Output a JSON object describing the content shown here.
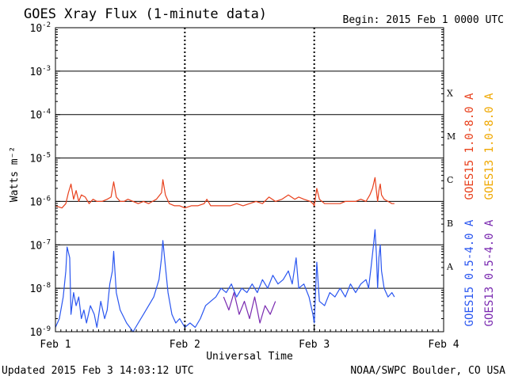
{
  "title": "GOES Xray Flux (1-minute data)",
  "begin_label": "Begin:  2015 Feb 1 0000 UTC",
  "updated_label": "Updated 2015 Feb  3 14:03:12 UTC",
  "credit": "NOAA/SWPC Boulder, CO USA",
  "colors": {
    "goes15_long": "#e8401c",
    "goes13_long": "#f0a800",
    "goes15_short": "#2a56f0",
    "goes13_short": "#7a2ab0"
  },
  "chart_data": {
    "type": "line",
    "title": "GOES Xray Flux (1-minute data)",
    "xlabel": "Universal Time",
    "ylabel": "Watts m⁻²",
    "y_scale": "log",
    "ylim": [
      1e-09,
      0.01
    ],
    "xlim": [
      0,
      3
    ],
    "x_unit": "days since 2015 Feb 1 0000 UTC",
    "x_ticks": [
      {
        "value": 0,
        "label": "Feb 1"
      },
      {
        "value": 1,
        "label": "Feb 2"
      },
      {
        "value": 2,
        "label": "Feb 3"
      },
      {
        "value": 3,
        "label": "Feb 4"
      }
    ],
    "y_ticks": [
      {
        "exp": -9,
        "label": "10",
        "sup": "-9"
      },
      {
        "exp": -8,
        "label": "10",
        "sup": "-8"
      },
      {
        "exp": -7,
        "label": "10",
        "sup": "-7"
      },
      {
        "exp": -6,
        "label": "10",
        "sup": "-6"
      },
      {
        "exp": -5,
        "label": "10",
        "sup": "-5"
      },
      {
        "exp": -4,
        "label": "10",
        "sup": "-4"
      },
      {
        "exp": -3,
        "label": "10",
        "sup": "-3"
      },
      {
        "exp": -2,
        "label": "10",
        "sup": "-2"
      }
    ],
    "flare_classes": [
      {
        "label": "A",
        "exp": -7.5
      },
      {
        "label": "B",
        "exp": -6.5
      },
      {
        "label": "C",
        "exp": -5.5
      },
      {
        "label": "M",
        "exp": -4.5
      },
      {
        "label": "X",
        "exp": -3.5
      }
    ],
    "grid": "horizontal lines at each decade from 1e-8 to 1e-3; dashed vertical lines at each day",
    "legend": [
      {
        "name": "GOES15 1.0-8.0 A",
        "color": "#e8401c"
      },
      {
        "name": "GOES13 1.0-8.0 A",
        "color": "#f0a800"
      },
      {
        "name": "GOES15 0.5-4.0 A",
        "color": "#2a56f0"
      },
      {
        "name": "GOES13 0.5-4.0 A",
        "color": "#7a2ab0"
      }
    ],
    "series": [
      {
        "name": "GOES15 1.0-8.0 A",
        "color": "#e8401c",
        "points": [
          [
            0.0,
            -6.1
          ],
          [
            0.05,
            -6.15
          ],
          [
            0.08,
            -6.05
          ],
          [
            0.1,
            -5.8
          ],
          [
            0.12,
            -5.6
          ],
          [
            0.14,
            -5.95
          ],
          [
            0.16,
            -5.75
          ],
          [
            0.18,
            -6.0
          ],
          [
            0.2,
            -5.85
          ],
          [
            0.23,
            -5.9
          ],
          [
            0.26,
            -6.05
          ],
          [
            0.29,
            -5.95
          ],
          [
            0.32,
            -6.0
          ],
          [
            0.36,
            -6.0
          ],
          [
            0.4,
            -5.95
          ],
          [
            0.43,
            -5.9
          ],
          [
            0.45,
            -5.55
          ],
          [
            0.47,
            -5.9
          ],
          [
            0.5,
            -6.0
          ],
          [
            0.53,
            -6.0
          ],
          [
            0.56,
            -5.95
          ],
          [
            0.6,
            -6.0
          ],
          [
            0.64,
            -6.05
          ],
          [
            0.68,
            -6.0
          ],
          [
            0.72,
            -6.05
          ],
          [
            0.75,
            -6.0
          ],
          [
            0.78,
            -5.95
          ],
          [
            0.82,
            -5.8
          ],
          [
            0.83,
            -5.5
          ],
          [
            0.85,
            -5.85
          ],
          [
            0.88,
            -6.05
          ],
          [
            0.92,
            -6.1
          ],
          [
            0.96,
            -6.1
          ],
          [
            1.0,
            -6.15
          ],
          [
            1.05,
            -6.1
          ],
          [
            1.1,
            -6.1
          ],
          [
            1.15,
            -6.05
          ],
          [
            1.17,
            -5.95
          ],
          [
            1.2,
            -6.1
          ],
          [
            1.25,
            -6.1
          ],
          [
            1.3,
            -6.1
          ],
          [
            1.35,
            -6.1
          ],
          [
            1.4,
            -6.05
          ],
          [
            1.45,
            -6.1
          ],
          [
            1.5,
            -6.05
          ],
          [
            1.55,
            -6.0
          ],
          [
            1.6,
            -6.05
          ],
          [
            1.65,
            -5.9
          ],
          [
            1.7,
            -6.0
          ],
          [
            1.75,
            -5.95
          ],
          [
            1.8,
            -5.85
          ],
          [
            1.85,
            -5.95
          ],
          [
            1.88,
            -5.9
          ],
          [
            1.92,
            -5.95
          ],
          [
            1.97,
            -6.0
          ],
          [
            1.99,
            -6.05
          ],
          [
            2.0,
            -6.1
          ],
          [
            2.02,
            -5.7
          ],
          [
            2.04,
            -5.95
          ],
          [
            2.08,
            -6.05
          ],
          [
            2.12,
            -6.05
          ],
          [
            2.16,
            -6.05
          ],
          [
            2.2,
            -6.05
          ],
          [
            2.24,
            -6.0
          ],
          [
            2.28,
            -6.0
          ],
          [
            2.32,
            -6.0
          ],
          [
            2.36,
            -5.95
          ],
          [
            2.4,
            -6.0
          ],
          [
            2.43,
            -5.85
          ],
          [
            2.45,
            -5.7
          ],
          [
            2.47,
            -5.45
          ],
          [
            2.48,
            -5.75
          ],
          [
            2.49,
            -6.0
          ],
          [
            2.5,
            -5.75
          ],
          [
            2.51,
            -5.6
          ],
          [
            2.52,
            -5.85
          ],
          [
            2.54,
            -5.95
          ],
          [
            2.57,
            -6.0
          ],
          [
            2.6,
            -6.05
          ],
          [
            2.62,
            -6.05
          ]
        ]
      },
      {
        "name": "GOES15 0.5-4.0 A",
        "color": "#2a56f0",
        "points": [
          [
            0.0,
            -8.9
          ],
          [
            0.03,
            -8.7
          ],
          [
            0.06,
            -8.2
          ],
          [
            0.08,
            -7.6
          ],
          [
            0.09,
            -7.05
          ],
          [
            0.11,
            -7.3
          ],
          [
            0.12,
            -8.6
          ],
          [
            0.14,
            -8.1
          ],
          [
            0.16,
            -8.4
          ],
          [
            0.18,
            -8.2
          ],
          [
            0.2,
            -8.7
          ],
          [
            0.22,
            -8.5
          ],
          [
            0.24,
            -8.8
          ],
          [
            0.27,
            -8.4
          ],
          [
            0.3,
            -8.6
          ],
          [
            0.32,
            -8.9
          ],
          [
            0.35,
            -8.3
          ],
          [
            0.38,
            -8.7
          ],
          [
            0.4,
            -8.5
          ],
          [
            0.42,
            -7.9
          ],
          [
            0.44,
            -7.6
          ],
          [
            0.45,
            -7.15
          ],
          [
            0.47,
            -8.1
          ],
          [
            0.5,
            -8.5
          ],
          [
            0.55,
            -8.8
          ],
          [
            0.6,
            -9.0
          ],
          [
            0.64,
            -8.8
          ],
          [
            0.68,
            -8.6
          ],
          [
            0.72,
            -8.4
          ],
          [
            0.76,
            -8.2
          ],
          [
            0.8,
            -7.8
          ],
          [
            0.82,
            -7.3
          ],
          [
            0.83,
            -6.9
          ],
          [
            0.85,
            -7.5
          ],
          [
            0.87,
            -8.1
          ],
          [
            0.9,
            -8.6
          ],
          [
            0.93,
            -8.8
          ],
          [
            0.96,
            -8.7
          ],
          [
            1.0,
            -8.9
          ],
          [
            1.04,
            -8.8
          ],
          [
            1.08,
            -8.9
          ],
          [
            1.12,
            -8.7
          ],
          [
            1.16,
            -8.4
          ],
          [
            1.2,
            -8.3
          ],
          [
            1.24,
            -8.2
          ],
          [
            1.28,
            -8.0
          ],
          [
            1.32,
            -8.1
          ],
          [
            1.36,
            -7.9
          ],
          [
            1.4,
            -8.2
          ],
          [
            1.44,
            -8.0
          ],
          [
            1.48,
            -8.1
          ],
          [
            1.52,
            -7.9
          ],
          [
            1.56,
            -8.1
          ],
          [
            1.6,
            -7.8
          ],
          [
            1.64,
            -8.0
          ],
          [
            1.68,
            -7.7
          ],
          [
            1.72,
            -7.9
          ],
          [
            1.76,
            -7.8
          ],
          [
            1.8,
            -7.6
          ],
          [
            1.83,
            -7.9
          ],
          [
            1.86,
            -7.3
          ],
          [
            1.88,
            -8.0
          ],
          [
            1.92,
            -7.9
          ],
          [
            1.96,
            -8.2
          ],
          [
            1.99,
            -8.6
          ],
          [
            2.0,
            -8.8
          ],
          [
            2.02,
            -7.4
          ],
          [
            2.04,
            -8.3
          ],
          [
            2.08,
            -8.4
          ],
          [
            2.12,
            -8.1
          ],
          [
            2.16,
            -8.2
          ],
          [
            2.2,
            -8.0
          ],
          [
            2.24,
            -8.2
          ],
          [
            2.28,
            -7.9
          ],
          [
            2.32,
            -8.1
          ],
          [
            2.36,
            -7.9
          ],
          [
            2.4,
            -7.8
          ],
          [
            2.42,
            -8.0
          ],
          [
            2.44,
            -7.5
          ],
          [
            2.46,
            -6.95
          ],
          [
            2.47,
            -6.65
          ],
          [
            2.48,
            -7.2
          ],
          [
            2.49,
            -8.0
          ],
          [
            2.5,
            -7.3
          ],
          [
            2.51,
            -7.0
          ],
          [
            2.52,
            -7.6
          ],
          [
            2.54,
            -8.0
          ],
          [
            2.57,
            -8.2
          ],
          [
            2.6,
            -8.1
          ],
          [
            2.62,
            -8.2
          ]
        ]
      },
      {
        "name": "GOES13 0.5-4.0 A",
        "color": "#7a2ab0",
        "points": [
          [
            1.3,
            -8.2
          ],
          [
            1.34,
            -8.5
          ],
          [
            1.38,
            -8.1
          ],
          [
            1.42,
            -8.6
          ],
          [
            1.46,
            -8.3
          ],
          [
            1.5,
            -8.7
          ],
          [
            1.54,
            -8.2
          ],
          [
            1.58,
            -8.8
          ],
          [
            1.62,
            -8.4
          ],
          [
            1.66,
            -8.6
          ],
          [
            1.7,
            -8.3
          ]
        ]
      }
    ]
  }
}
